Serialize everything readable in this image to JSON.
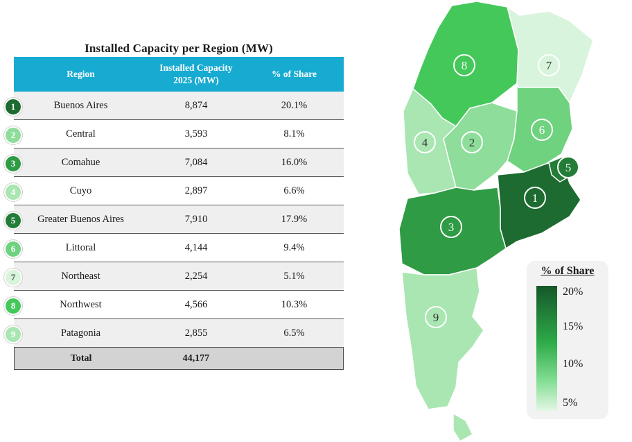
{
  "table": {
    "title": "Installed Capacity per Region (MW)",
    "headers": {
      "region": "Region",
      "capacity_l1": "Installed Capacity",
      "capacity_l2": "2025 (MW)",
      "share": "% of Share"
    },
    "rows": [
      {
        "num": "1",
        "region": "Buenos Aires",
        "capacity": "8,874",
        "share": "20.1%",
        "color": "#1d6b30"
      },
      {
        "num": "2",
        "region": "Central",
        "capacity": "3,593",
        "share": "8.1%",
        "color": "#8fdd9b"
      },
      {
        "num": "3",
        "region": "Comahue",
        "capacity": "7,084",
        "share": "16.0%",
        "color": "#2f9b45"
      },
      {
        "num": "4",
        "region": "Cuyo",
        "capacity": "2,897",
        "share": "6.6%",
        "color": "#a9e6b2"
      },
      {
        "num": "5",
        "region": "Greater Buenos Aires",
        "capacity": "7,910",
        "share": "17.9%",
        "color": "#237c37"
      },
      {
        "num": "6",
        "region": "Littoral",
        "capacity": "4,144",
        "share": "9.4%",
        "color": "#6fd27f"
      },
      {
        "num": "7",
        "region": "Northeast",
        "capacity": "2,254",
        "share": "5.1%",
        "color": "#d8f4dc"
      },
      {
        "num": "8",
        "region": "Northwest",
        "capacity": "4,566",
        "share": "10.3%",
        "color": "#44c85a"
      },
      {
        "num": "9",
        "region": "Patagonia",
        "capacity": "2,855",
        "share": "6.5%",
        "color": "#a9e6b2"
      }
    ],
    "total": {
      "label": "Total",
      "capacity": "44,177"
    }
  },
  "legend": {
    "title": "% of Share",
    "ticks": [
      "20%",
      "15%",
      "10%",
      "5%"
    ]
  },
  "chart_data": {
    "type": "table",
    "title": "Installed Capacity per Region (MW)",
    "columns": [
      "Region",
      "Installed Capacity 2025 (MW)",
      "% of Share"
    ],
    "categories": [
      "Buenos Aires",
      "Central",
      "Comahue",
      "Cuyo",
      "Greater Buenos Aires",
      "Littoral",
      "Northeast",
      "Northwest",
      "Patagonia"
    ],
    "series": [
      {
        "name": "Installed Capacity 2025 (MW)",
        "values": [
          8874,
          3593,
          7084,
          2897,
          7910,
          4144,
          2254,
          4566,
          2855
        ]
      },
      {
        "name": "% of Share",
        "values": [
          20.1,
          8.1,
          16.0,
          6.6,
          17.9,
          9.4,
          5.1,
          10.3,
          6.5
        ]
      }
    ],
    "total": 44177,
    "map_colorscale": {
      "title": "% of Share",
      "range": [
        5,
        20
      ]
    }
  }
}
